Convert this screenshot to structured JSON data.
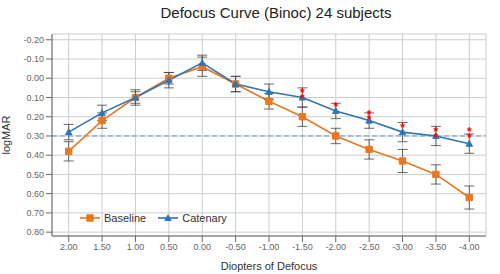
{
  "chart_data": {
    "type": "line",
    "title": "Defocus Curve (Binoc) 24 subjects",
    "x_label": "Diopters of Defocus",
    "y_label": "logMAR",
    "x": [
      2.0,
      1.5,
      1.0,
      0.5,
      0.0,
      -0.5,
      -1.0,
      -1.5,
      -2.0,
      -2.5,
      -3.0,
      -3.5,
      -4.0
    ],
    "series": [
      {
        "name": "Baseline",
        "color": "#E87722",
        "marker": "square",
        "values": [
          0.38,
          0.22,
          0.1,
          0.0,
          -0.06,
          0.03,
          0.12,
          0.2,
          0.3,
          0.37,
          0.43,
          0.5,
          0.62
        ],
        "errors": [
          0.05,
          0.04,
          0.04,
          0.03,
          0.05,
          0.04,
          0.04,
          0.05,
          0.04,
          0.05,
          0.06,
          0.05,
          0.06
        ]
      },
      {
        "name": "Catenary",
        "color": "#2E75B6",
        "marker": "triangle",
        "values": [
          0.28,
          0.18,
          0.1,
          0.01,
          -0.08,
          0.03,
          0.07,
          0.1,
          0.17,
          0.22,
          0.28,
          0.3,
          0.34
        ],
        "errors": [
          0.04,
          0.04,
          0.03,
          0.04,
          0.04,
          0.04,
          0.04,
          0.05,
          0.04,
          0.04,
          0.05,
          0.05,
          0.05
        ]
      }
    ],
    "xlim": [
      2.25,
      -4.25
    ],
    "ylim": [
      0.82,
      -0.23
    ],
    "xticks": [
      {
        "value": 2.0,
        "label": "2.00"
      },
      {
        "value": 1.5,
        "label": "1.50"
      },
      {
        "value": 1.0,
        "label": "1.00"
      },
      {
        "value": 0.5,
        "label": "0.50"
      },
      {
        "value": 0.0,
        "label": "0.00"
      },
      {
        "value": -0.5,
        "label": "-0.50"
      },
      {
        "value": -1.0,
        "label": "-1.00"
      },
      {
        "value": -1.5,
        "label": "-1.50"
      },
      {
        "value": -2.0,
        "label": "-2.00"
      },
      {
        "value": -2.5,
        "label": "-2.50"
      },
      {
        "value": -3.0,
        "label": "-3.00"
      },
      {
        "value": -3.5,
        "label": "-3.50"
      },
      {
        "value": -4.0,
        "label": "-4.00"
      }
    ],
    "yticks": [
      {
        "value": -0.2,
        "label": "-0.20"
      },
      {
        "value": -0.1,
        "label": "-0.10"
      },
      {
        "value": 0.0,
        "label": "0.00"
      },
      {
        "value": 0.1,
        "label": "0.10"
      },
      {
        "value": 0.2,
        "label": "0.20"
      },
      {
        "value": 0.3,
        "label": "0.30"
      },
      {
        "value": 0.4,
        "label": "0.40"
      },
      {
        "value": 0.5,
        "label": "0.50"
      },
      {
        "value": 0.6,
        "label": "0.60"
      },
      {
        "value": 0.7,
        "label": "0.70"
      },
      {
        "value": 0.8,
        "label": "0.80"
      }
    ],
    "grid": true,
    "legend": "lower left",
    "reference_lines": [
      {
        "y": 0.3,
        "color": "#5B9BD5",
        "line_style": "dashed"
      }
    ],
    "annotations": [
      {
        "x": -1.5,
        "y": 0.065,
        "text": "*",
        "color": "red"
      },
      {
        "x": -1.5,
        "y": 0.095,
        "text": "*",
        "color": "red"
      },
      {
        "x": -2.0,
        "y": 0.135,
        "text": "*",
        "color": "red"
      },
      {
        "x": -2.5,
        "y": 0.175,
        "text": "*",
        "color": "red"
      },
      {
        "x": -2.5,
        "y": 0.205,
        "text": "*",
        "color": "red"
      },
      {
        "x": -3.0,
        "y": 0.245,
        "text": "*",
        "color": "red"
      },
      {
        "x": -3.5,
        "y": 0.265,
        "text": "*",
        "color": "red"
      },
      {
        "x": -3.5,
        "y": 0.295,
        "text": "*",
        "color": "red"
      },
      {
        "x": -4.0,
        "y": 0.265,
        "text": "*",
        "color": "red"
      },
      {
        "x": -4.0,
        "y": 0.295,
        "text": "*",
        "color": "red"
      }
    ]
  }
}
